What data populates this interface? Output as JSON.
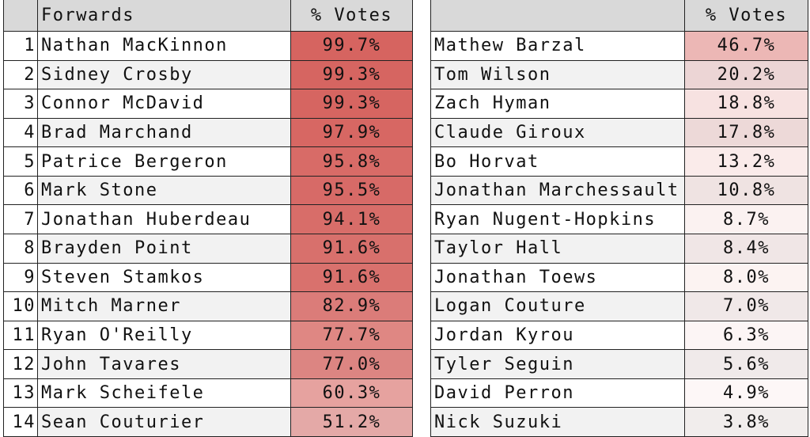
{
  "left": {
    "header": {
      "name": "Forwards",
      "votes": "% Votes"
    },
    "rows": [
      [
        1,
        "Nathan MacKinnon",
        "99.7%"
      ],
      [
        2,
        "Sidney Crosby",
        "99.3%"
      ],
      [
        3,
        "Connor McDavid",
        "99.3%"
      ],
      [
        4,
        "Brad Marchand",
        "97.9%"
      ],
      [
        5,
        "Patrice Bergeron",
        "95.8%"
      ],
      [
        6,
        "Mark Stone",
        "95.5%"
      ],
      [
        7,
        "Jonathan Huberdeau",
        "94.1%"
      ],
      [
        8,
        "Brayden Point",
        "91.6%"
      ],
      [
        9,
        "Steven Stamkos",
        "91.6%"
      ],
      [
        10,
        "Mitch Marner",
        "82.9%"
      ],
      [
        11,
        "Ryan O'Reilly",
        "77.7%"
      ],
      [
        12,
        "John Tavares",
        "77.0%"
      ],
      [
        13,
        "Mark Scheifele",
        "60.3%"
      ],
      [
        14,
        "Sean Couturier",
        "51.2%"
      ]
    ]
  },
  "right": {
    "header": {
      "votes": "% Votes"
    },
    "rows": [
      [
        "Mathew Barzal",
        "46.7%"
      ],
      [
        "Tom Wilson",
        "20.2%"
      ],
      [
        "Zach Hyman",
        "18.8%"
      ],
      [
        "Claude Giroux",
        "17.8%"
      ],
      [
        "Bo Horvat",
        "13.2%"
      ],
      [
        "Jonathan Marchessault",
        "10.8%"
      ],
      [
        "Ryan Nugent-Hopkins",
        "8.7%"
      ],
      [
        "Taylor Hall",
        "8.4%"
      ],
      [
        "Jonathan Toews",
        "8.0%"
      ],
      [
        "Logan Couture",
        "7.0%"
      ],
      [
        "Jordan Kyrou",
        "6.3%"
      ],
      [
        "Tyler Seguin",
        "5.6%"
      ],
      [
        "David Perron",
        "4.9%"
      ],
      [
        "Nick Suzuki",
        "3.8%"
      ]
    ]
  }
}
